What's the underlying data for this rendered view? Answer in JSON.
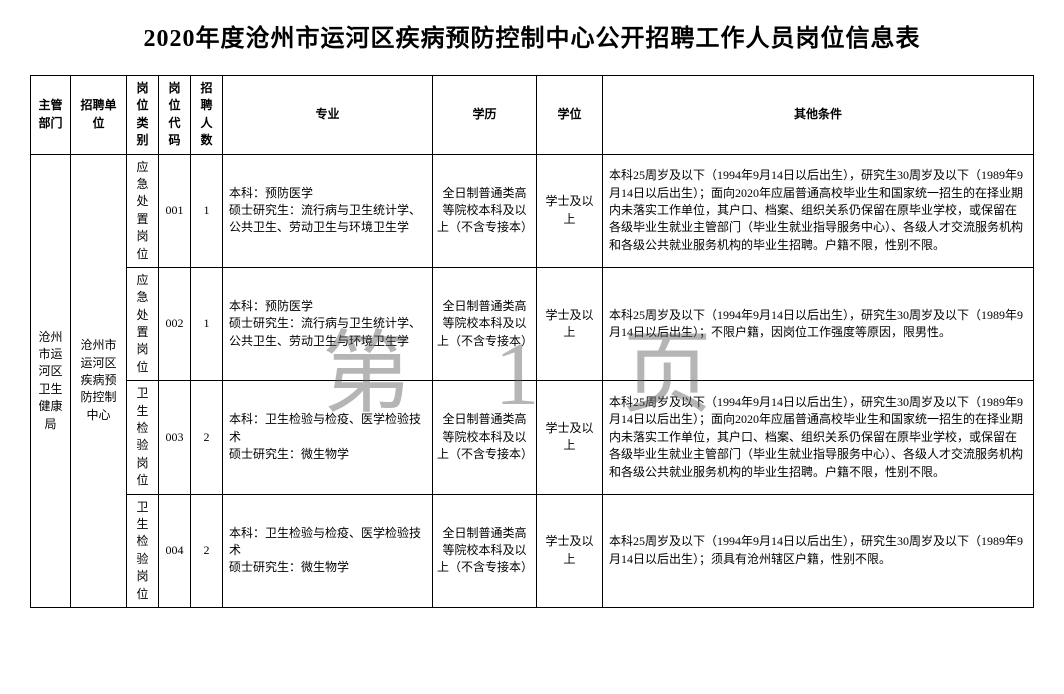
{
  "title": "2020年度沧州市运河区疾病预防控制中心公开招聘工作人员岗位信息表",
  "watermark": "第 1 页",
  "columns": {
    "dept": "主管部门",
    "unit": "招聘单位",
    "category": "岗位类别",
    "code": "岗位代码",
    "count": "招聘人数",
    "major": "专业",
    "education": "学历",
    "degree": "学位",
    "other": "其他条件"
  },
  "dept": "沧州市运河区卫生健康局",
  "unit": "沧州市运河区疾病预防控制中心",
  "rows": [
    {
      "category": "应急处置岗位",
      "code": "001",
      "count": "1",
      "major": "本科：预防医学\n硕士研究生：流行病与卫生统计学、公共卫生、劳动卫生与环境卫生学",
      "education": "全日制普通类高等院校本科及以上（不含专接本）",
      "degree": "学士及以上",
      "other": "本科25周岁及以下（1994年9月14日以后出生），研究生30周岁及以下（1989年9月14日以后出生）；面向2020年应届普通高校毕业生和国家统一招生的在择业期内未落实工作单位，其户口、档案、组织关系仍保留在原毕业学校，或保留在各级毕业生就业主管部门（毕业生就业指导服务中心）、各级人才交流服务机构和各级公共就业服务机构的毕业生招聘。户籍不限，性别不限。"
    },
    {
      "category": "应急处置岗位",
      "code": "002",
      "count": "1",
      "major": "本科：预防医学\n硕士研究生：流行病与卫生统计学、公共卫生、劳动卫生与环境卫生学",
      "education": "全日制普通类高等院校本科及以上（不含专接本）",
      "degree": "学士及以上",
      "other": "本科25周岁及以下（1994年9月14日以后出生），研究生30周岁及以下（1989年9月14日以后出生）；不限户籍，因岗位工作强度等原因，限男性。"
    },
    {
      "category": "卫生检验岗位",
      "code": "003",
      "count": "2",
      "major": "本科：卫生检验与检疫、医学检验技术\n硕士研究生：微生物学",
      "education": "全日制普通类高等院校本科及以上（不含专接本）",
      "degree": "学士及以上",
      "other": "本科25周岁及以下（1994年9月14日以后出生），研究生30周岁及以下（1989年9月14日以后出生）；面向2020年应届普通高校毕业生和国家统一招生的在择业期内未落实工作单位，其户口、档案、组织关系仍保留在原毕业学校，或保留在各级毕业生就业主管部门（毕业生就业指导服务中心）、各级人才交流服务机构和各级公共就业服务机构的毕业生招聘。户籍不限，性别不限。"
    },
    {
      "category": "卫生检验岗位",
      "code": "004",
      "count": "2",
      "major": "本科：卫生检验与检疫、医学检验技术\n硕士研究生：微生物学",
      "education": "全日制普通类高等院校本科及以上（不含专接本）",
      "degree": "学士及以上",
      "other": "本科25周岁及以下（1994年9月14日以后出生），研究生30周岁及以下（1989年9月14日以后出生）；须具有沧州辖区户籍，性别不限。"
    }
  ]
}
